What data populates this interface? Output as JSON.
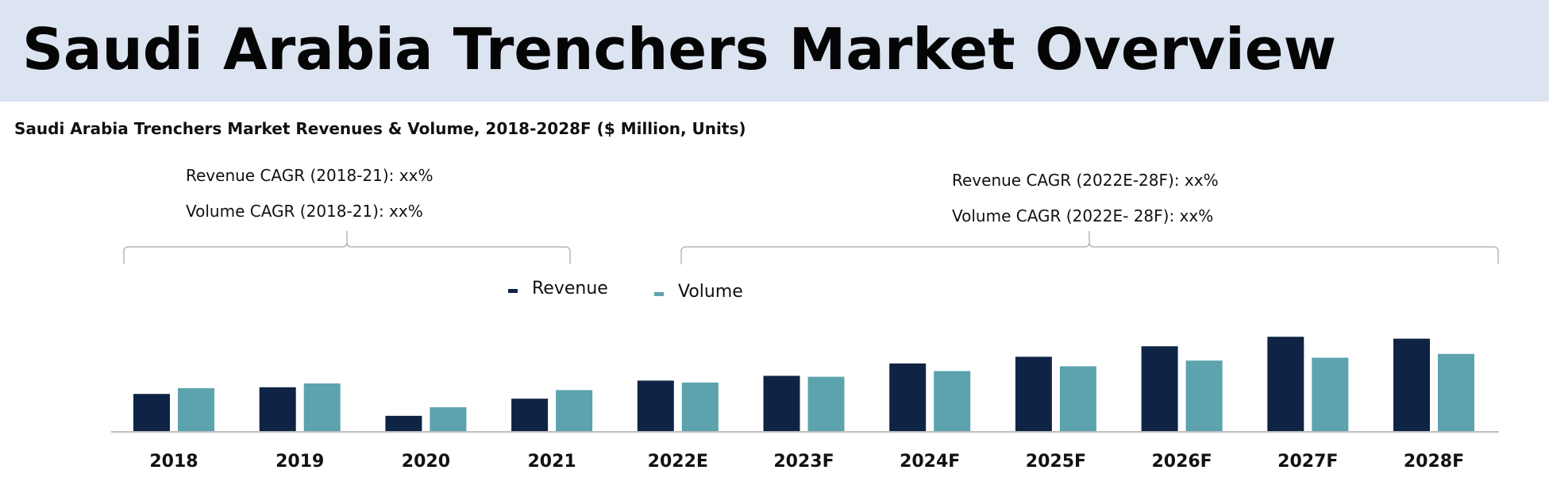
{
  "page": {
    "title": "Saudi Arabia Trenchers Market Overview"
  },
  "colors": {
    "header_band": "#dce4f2",
    "revenue": "#0f2444",
    "volume": "#5ca3ae",
    "axis": "#bfbfbf",
    "bracket": "#b7b7b7"
  },
  "annotations": {
    "left": {
      "revenue_cagr": "Revenue CAGR (2018-21): xx%",
      "volume_cagr": "Volume CAGR (2018-21): xx%"
    },
    "right": {
      "revenue_cagr": "Revenue CAGR (2022E-28F): xx%",
      "volume_cagr": "Volume CAGR (2022E- 28F): xx%"
    }
  },
  "chart_data": {
    "type": "bar",
    "title": "Saudi Arabia Trenchers Market Revenues & Volume, 2018-2028F ($ Million, Units)",
    "xlabel": "",
    "ylabel": "",
    "ylim": [
      0,
      100
    ],
    "grid": false,
    "legend_position": "top-center",
    "categories": [
      "2018",
      "2019",
      "2020",
      "2021",
      "2022E",
      "2023F",
      "2024F",
      "2025F",
      "2026F",
      "2027F",
      "2028F"
    ],
    "series": [
      {
        "name": "Revenue",
        "values": [
          39,
          46,
          16,
          34,
          53,
          58,
          71,
          78,
          89,
          99,
          97
        ]
      },
      {
        "name": "Volume",
        "values": [
          45,
          50,
          25,
          43,
          51,
          57,
          63,
          68,
          74,
          77,
          81
        ]
      }
    ]
  }
}
